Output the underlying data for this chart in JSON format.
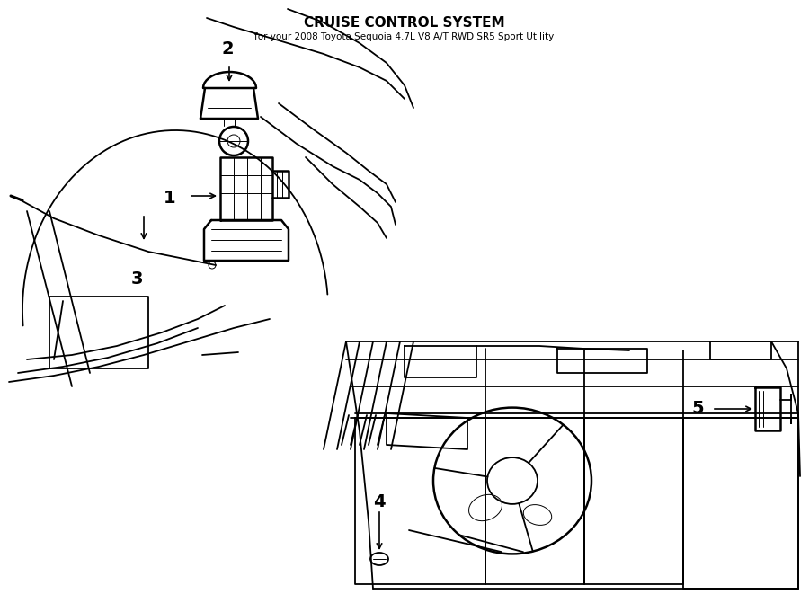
{
  "title": "CRUISE CONTROL SYSTEM",
  "subtitle": "for your 2008 Toyota Sequoia 4.7L V8 A/T RWD SR5 Sport Utility",
  "bg_color": "#ffffff",
  "line_color": "#000000",
  "figsize": [
    9.0,
    6.61
  ],
  "dpi": 100,
  "label_fontsize": 14,
  "lw_main": 1.3,
  "lw_thick": 1.8,
  "lw_thin": 0.7
}
